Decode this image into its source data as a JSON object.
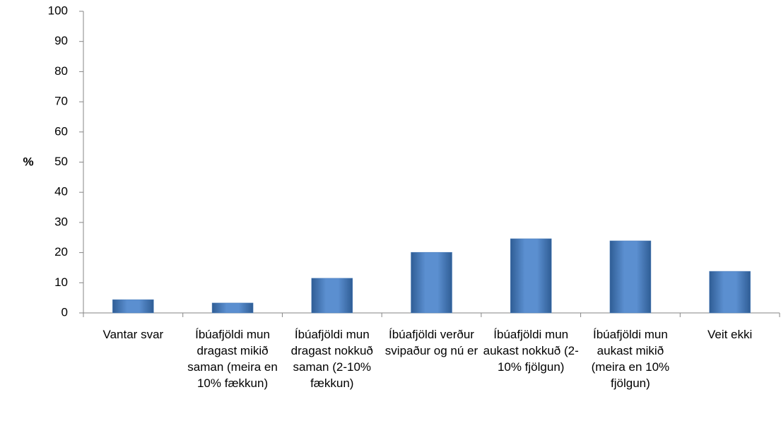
{
  "chart_data": {
    "type": "bar",
    "ylabel": "%",
    "categories": [
      "Vantar svar",
      "Íbúafjöldi mun dragast mikið saman (meira en 10% fækkun)",
      "Íbúafjöldi mun dragast nokkuð saman (2-10% fækkun)",
      "Íbúafjöldi verður svipaður og nú er",
      "Íbúafjöldi mun aukast nokkuð (2-10% fjölgun)",
      "Íbúafjöldi mun aukast mikið (meira en 10% fjölgun)",
      "Veit ekki"
    ],
    "values": [
      4.4,
      3.3,
      11.5,
      20.1,
      24.6,
      23.9,
      13.8
    ],
    "color": "#4f81bd",
    "ylim": [
      0,
      100
    ],
    "yticks": [
      0,
      10,
      20,
      30,
      40,
      50,
      60,
      70,
      80,
      90,
      100
    ],
    "grid": false
  }
}
